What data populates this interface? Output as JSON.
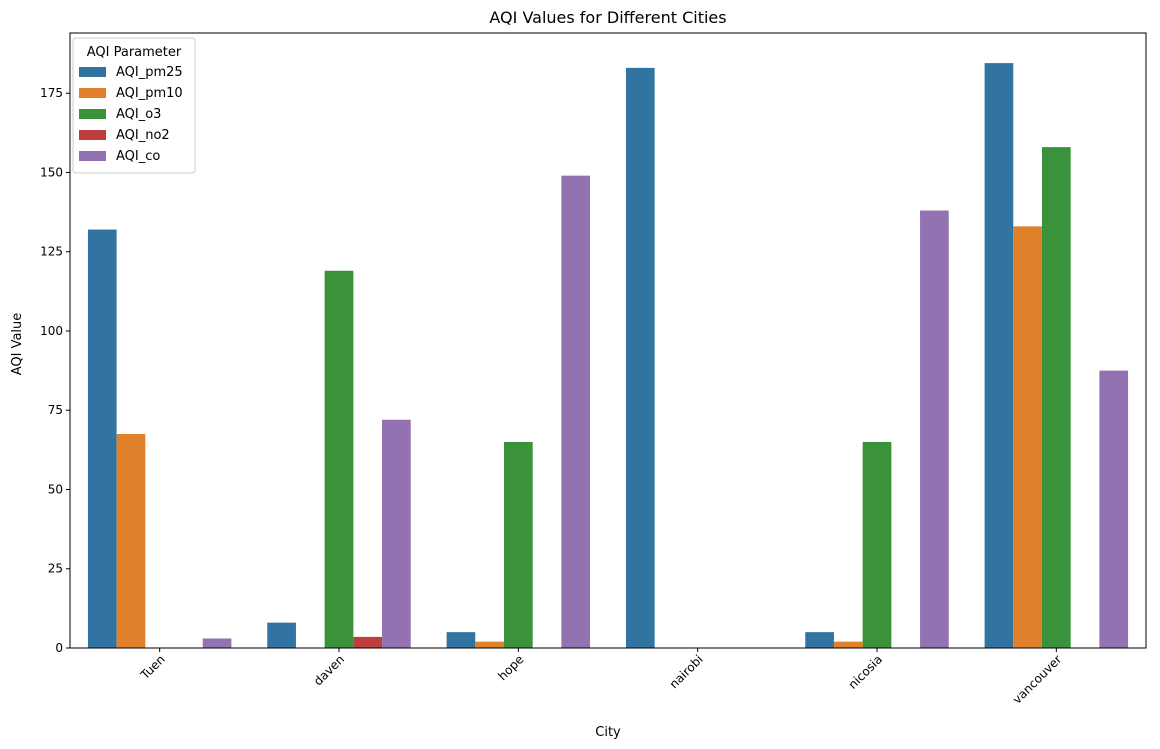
{
  "chart_data": {
    "type": "bar",
    "title": "AQI Values for Different Cities",
    "xlabel": "City",
    "ylabel": "AQI Value",
    "categories": [
      "Tuen",
      "daven",
      "hope",
      "nairobi",
      "nicosia",
      "vancouver"
    ],
    "ylim": [
      0,
      194
    ],
    "yticks": [
      0,
      25,
      50,
      75,
      100,
      125,
      150,
      175
    ],
    "grid": false,
    "legend": {
      "title": "AQI Parameter",
      "placement": "top-left"
    },
    "series": [
      {
        "name": "AQI_pm25",
        "color": "#3274a1",
        "values": [
          132,
          8,
          5,
          183,
          5,
          184.5
        ]
      },
      {
        "name": "AQI_pm10",
        "color": "#e1812c",
        "values": [
          67.5,
          0,
          2,
          0,
          2,
          133
        ]
      },
      {
        "name": "AQI_o3",
        "color": "#3a923a",
        "values": [
          0,
          119,
          65,
          0,
          65,
          158
        ]
      },
      {
        "name": "AQI_no2",
        "color": "#c03d3e",
        "values": [
          0,
          3.5,
          0,
          0,
          0,
          0
        ]
      },
      {
        "name": "AQI_co",
        "color": "#9372b2",
        "values": [
          3,
          72,
          149,
          0,
          138,
          87.5
        ]
      }
    ]
  }
}
